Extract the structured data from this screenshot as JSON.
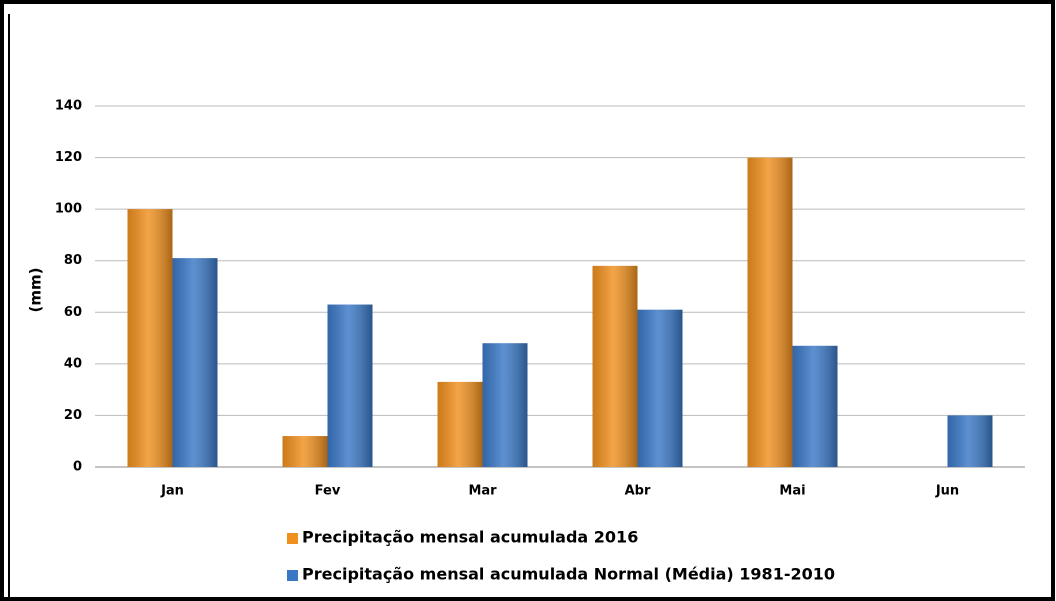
{
  "chart_data": {
    "type": "bar",
    "y_label": "(mm)",
    "categories": [
      "Jan",
      "Fev",
      "Mar",
      "Abr",
      "Mai",
      "Jun"
    ],
    "series": [
      {
        "name": "Precipitação mensal acumulada 2016",
        "color": "#f0901f",
        "values": [
          100,
          12,
          33,
          78,
          120,
          null
        ]
      },
      {
        "name": "Precipitação mensal acumulada Normal (Média) 1981-2010",
        "color": "#3a78c6",
        "values": [
          81,
          63,
          48,
          61,
          47,
          20
        ]
      }
    ],
    "ylim": [
      0,
      140
    ],
    "yticks": [
      0,
      20,
      40,
      60,
      80,
      100,
      120,
      140
    ],
    "grid": true,
    "legend": "bottom"
  }
}
